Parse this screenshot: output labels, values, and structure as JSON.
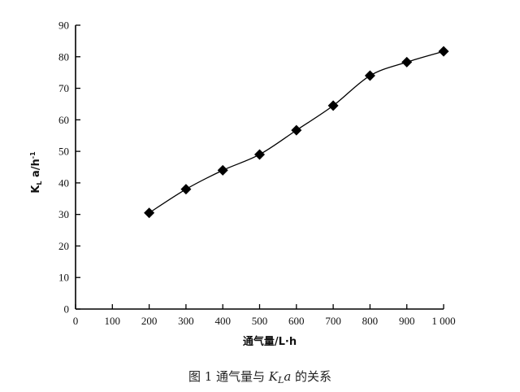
{
  "chart_data": {
    "type": "line",
    "x": [
      200,
      300,
      400,
      500,
      600,
      700,
      800,
      900,
      1000
    ],
    "values": [
      30.5,
      38,
      44,
      49,
      56.7,
      64.5,
      74,
      78.3,
      81.7
    ],
    "xlabel": "通气量/L·h",
    "ylabel": "K_L a/h⁻¹",
    "ylabel_main": "K",
    "ylabel_sub": "L",
    "ylabel_rest": " a/h",
    "ylabel_sup": "-1",
    "xlim": [
      0,
      1000
    ],
    "ylim": [
      0,
      90
    ],
    "x_ticks": [
      0,
      100,
      200,
      300,
      400,
      500,
      600,
      700,
      800,
      900,
      1000
    ],
    "x_tick_labels": [
      "0",
      "100",
      "200",
      "300",
      "400",
      "500",
      "600",
      "700",
      "800",
      "900",
      "1 000"
    ],
    "y_ticks": [
      0,
      10,
      20,
      30,
      40,
      50,
      60,
      70,
      80,
      90
    ],
    "y_tick_labels": [
      "0",
      "10",
      "20",
      "30",
      "40",
      "50",
      "60",
      "70",
      "80",
      "90"
    ],
    "marker": "diamond",
    "grid": false,
    "caption": "图 1   通气量与 K_L a 的关系",
    "caption_prefix": "图 1   通气量与 ",
    "caption_main": "K",
    "caption_sub": "L",
    "caption_italic": "a",
    "caption_suffix": " 的关系"
  }
}
